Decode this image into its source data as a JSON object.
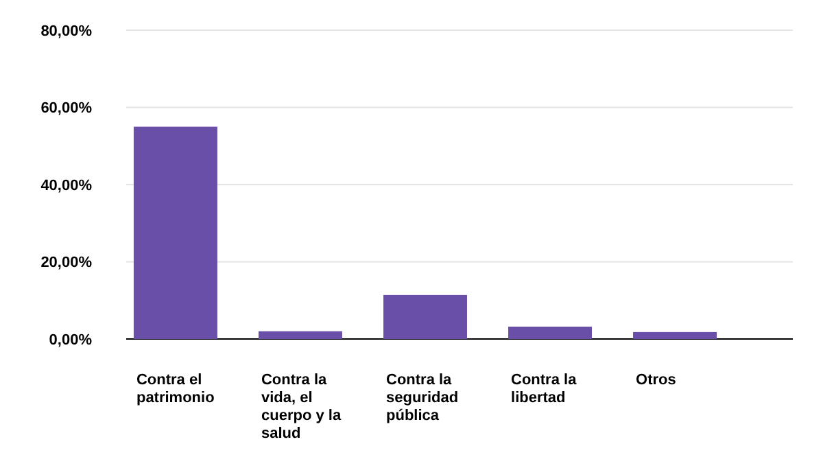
{
  "chart_data": {
    "type": "bar",
    "categories": [
      "Contra el patrimonio",
      "Contra la vida, el cuerpo y la salud",
      "Contra la seguridad pública",
      "Contra la libertad",
      "Otros"
    ],
    "values": [
      55,
      2,
      11.4,
      3.2,
      1.8
    ],
    "color": "#6a4fa8",
    "ylim": [
      0,
      80
    ],
    "yticks": [
      {
        "value": 0,
        "label": "0,00%"
      },
      {
        "value": 20,
        "label": "20,00%"
      },
      {
        "value": 40,
        "label": "40,00%"
      },
      {
        "value": 60,
        "label": "60,00%"
      },
      {
        "value": 80,
        "label": "80,00%"
      }
    ],
    "grid": "y"
  }
}
